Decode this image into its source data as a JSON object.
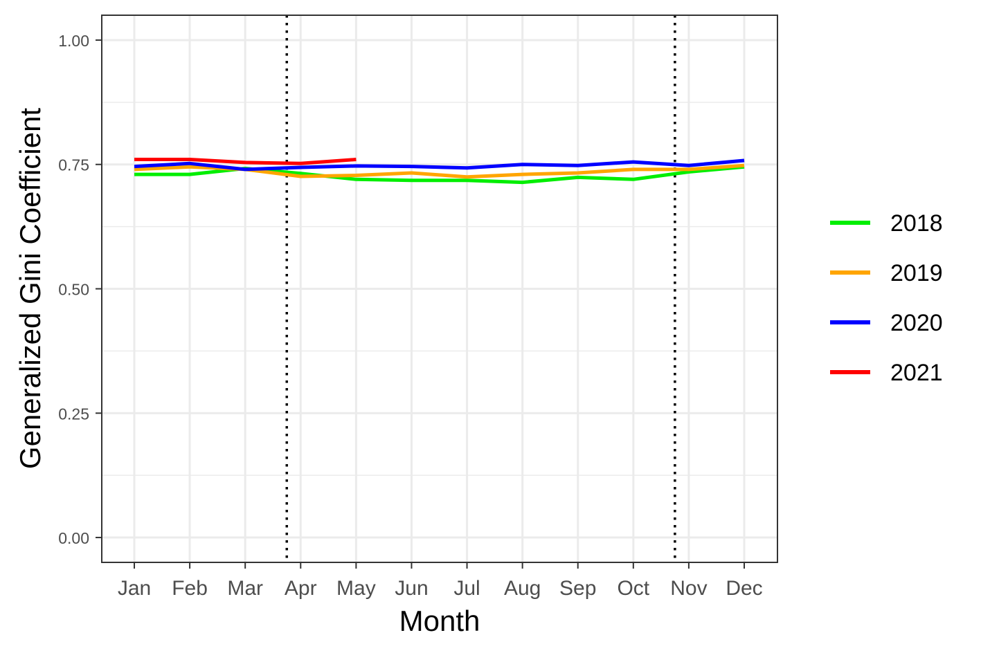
{
  "chart_data": {
    "type": "line",
    "title": "",
    "xlabel": "Month",
    "ylabel": "Generalized Gini Coefficient",
    "categories": [
      "Jan",
      "Feb",
      "Mar",
      "Apr",
      "May",
      "Jun",
      "Jul",
      "Aug",
      "Sep",
      "Oct",
      "Nov",
      "Dec"
    ],
    "ylim": [
      -0.05,
      1.05
    ],
    "yticks": [
      0.0,
      0.25,
      0.5,
      0.75,
      1.0
    ],
    "ytick_labels": [
      "0.00",
      "0.25",
      "0.50",
      "0.75",
      "1.00"
    ],
    "grid": true,
    "legend_position": "right",
    "vlines": [
      {
        "x": 3.75,
        "style": "dotted",
        "color": "#000000"
      },
      {
        "x": 10.75,
        "style": "dotted",
        "color": "#000000"
      }
    ],
    "series": [
      {
        "name": "2018",
        "color": "#00ee00",
        "values": [
          0.73,
          0.73,
          0.742,
          0.732,
          0.72,
          0.718,
          0.718,
          0.714,
          0.724,
          0.72,
          0.735,
          0.745
        ]
      },
      {
        "name": "2019",
        "color": "#ffa500",
        "values": [
          0.74,
          0.745,
          0.74,
          0.726,
          0.728,
          0.733,
          0.725,
          0.73,
          0.733,
          0.74,
          0.74,
          0.748
        ]
      },
      {
        "name": "2020",
        "color": "#0000ff",
        "values": [
          0.746,
          0.752,
          0.74,
          0.744,
          0.747,
          0.746,
          0.743,
          0.75,
          0.748,
          0.755,
          0.748,
          0.758
        ]
      },
      {
        "name": "2021",
        "color": "#ff0000",
        "values": [
          0.76,
          0.76,
          0.754,
          0.752,
          0.76,
          null,
          null,
          null,
          null,
          null,
          null,
          null
        ]
      }
    ]
  }
}
